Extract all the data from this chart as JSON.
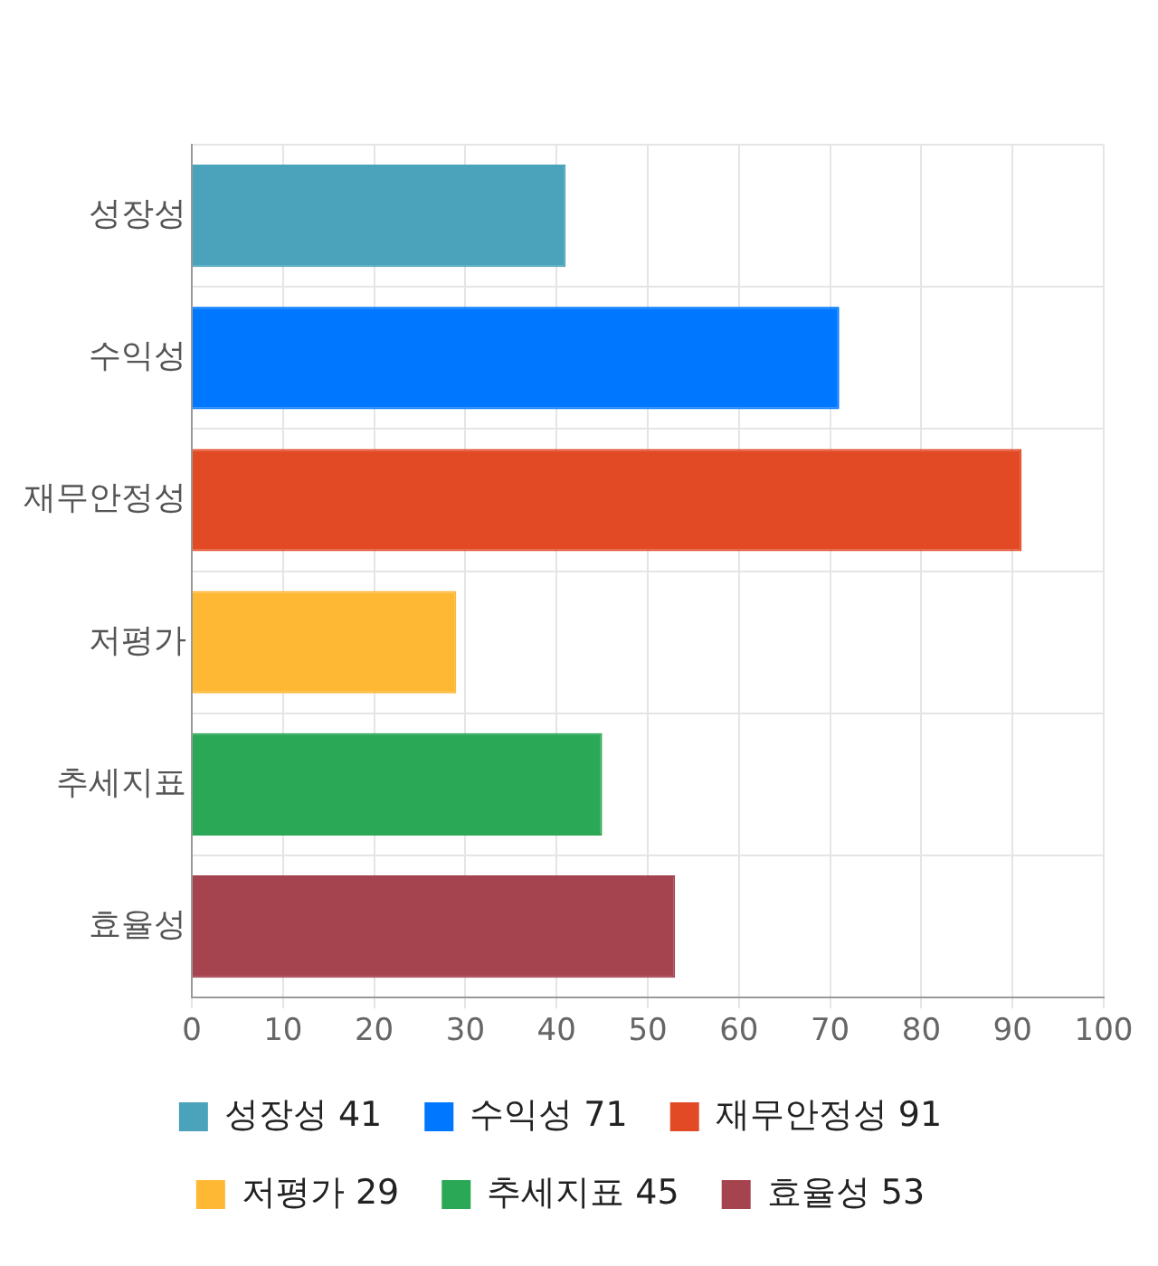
{
  "chart_data": {
    "type": "bar",
    "orientation": "horizontal",
    "categories": [
      "성장성",
      "수익성",
      "재무안정성",
      "저평가",
      "추세지표",
      "효율성"
    ],
    "series": [
      {
        "name": "성장성 41",
        "color": "#4aa3ba",
        "values": [
          41,
          null,
          null,
          null,
          null,
          null
        ]
      },
      {
        "name": "수익성 71",
        "color": "#0077ff",
        "values": [
          null,
          71,
          null,
          null,
          null,
          null
        ]
      },
      {
        "name": "재무안정성 91",
        "color": "#e24a25",
        "values": [
          null,
          null,
          91,
          null,
          null,
          null
        ]
      },
      {
        "name": "저평가 29",
        "color": "#ffb833",
        "values": [
          null,
          null,
          null,
          29,
          null,
          null
        ]
      },
      {
        "name": "추세지표 45",
        "color": "#2aa855",
        "values": [
          null,
          null,
          null,
          null,
          45,
          null
        ]
      },
      {
        "name": "효율성 53",
        "color": "#a5434f",
        "values": [
          null,
          null,
          null,
          null,
          null,
          53
        ]
      }
    ],
    "xlim": [
      0,
      100
    ],
    "xticks": [
      0,
      10,
      20,
      30,
      40,
      50,
      60,
      70,
      80,
      90,
      100
    ],
    "grid": true,
    "legend": "bottom"
  }
}
